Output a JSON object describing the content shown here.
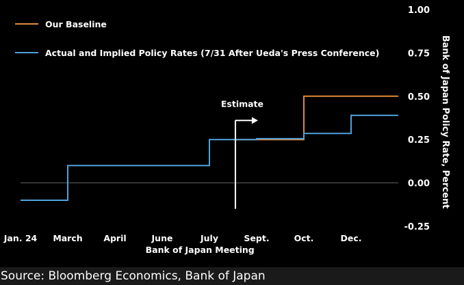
{
  "chart_data": {
    "type": "line",
    "step": true,
    "title": "",
    "xlabel": "Bank of Japan Meeting",
    "ylabel": "Bank of Japan Policy Rate, Percent",
    "ylim": [
      -0.25,
      1.0
    ],
    "yticks": [
      1.0,
      0.75,
      0.5,
      0.25,
      0.0,
      -0.25
    ],
    "ytick_labels": [
      "1.00",
      "0.75",
      "0.50",
      "0.25",
      "0.00",
      "-0.25"
    ],
    "categories": [
      "Jan. 24",
      "March",
      "April",
      "June",
      "July",
      "Sept.",
      "Oct.",
      "Dec."
    ],
    "x_end": 8,
    "series": [
      {
        "name": "Our Baseline",
        "color": "#e08a3a",
        "x": [
          4.5,
          6.0,
          6.0,
          7.0,
          8.0
        ],
        "values": [
          0.25,
          0.25,
          0.5,
          0.5,
          0.5
        ]
      },
      {
        "name": "Actual and Implied Policy Rates (7/31 After Ueda's Press Conference)",
        "color": "#4fa3e0",
        "x": [
          0.0,
          1.0,
          1.0,
          4.0,
          4.0,
          5.0,
          5.0,
          6.0,
          6.0,
          7.0,
          7.0,
          8.0
        ],
        "values": [
          -0.1,
          -0.1,
          0.1,
          0.1,
          0.25,
          0.25,
          0.255,
          0.255,
          0.285,
          0.285,
          0.39,
          0.39
        ]
      }
    ],
    "annotations": [
      {
        "text": "Estimate",
        "x": 4.55,
        "y_from": -0.15,
        "y_to": 0.36
      }
    ],
    "zero_line": true,
    "grid": false,
    "legend_position": "top-left"
  },
  "source_text": "Source: Bloomberg Economics, Bank of Japan",
  "colors": {
    "background": "#000000",
    "text": "#ffffff",
    "footer_bg": "#1a1a1a",
    "zero_line": "#666666"
  }
}
